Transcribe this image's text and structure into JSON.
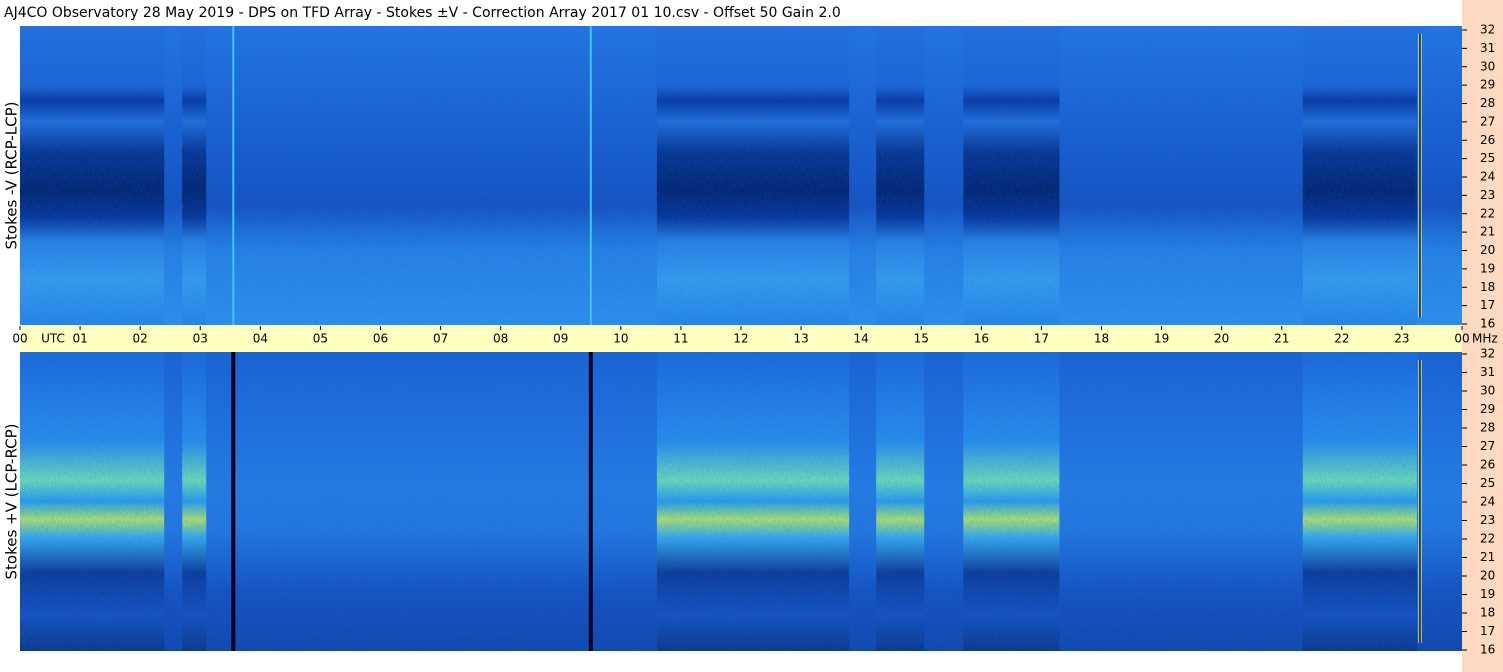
{
  "chart_data": [
    {
      "type": "spectrogram",
      "title": "AJ4CO Observatory  28 May 2019  -  DPS on TFD Array  -  Stokes ±V  -  Correction Array 2017 01 10.csv  -  Offset 50  Gain 2.0",
      "ylabel": "Stokes -V (RCP-LCP)",
      "ylim": [
        16,
        32
      ],
      "yticks": [
        16,
        17,
        18,
        19,
        20,
        21,
        22,
        23,
        24,
        25,
        26,
        27,
        28,
        29,
        30,
        31,
        32
      ],
      "xlim": [
        0,
        24
      ],
      "xticks": [
        {
          "value": 0,
          "label": "00"
        },
        {
          "value": 1,
          "label": "01"
        },
        {
          "value": 2,
          "label": "02"
        },
        {
          "value": 3,
          "label": "03"
        },
        {
          "value": 4,
          "label": "04"
        },
        {
          "value": 5,
          "label": "05"
        },
        {
          "value": 6,
          "label": "06"
        },
        {
          "value": 7,
          "label": "07"
        },
        {
          "value": 8,
          "label": "08"
        },
        {
          "value": 9,
          "label": "09"
        },
        {
          "value": 10,
          "label": "10"
        },
        {
          "value": 11,
          "label": "11"
        },
        {
          "value": 12,
          "label": "12"
        },
        {
          "value": 13,
          "label": "13"
        },
        {
          "value": 14,
          "label": "14"
        },
        {
          "value": 15,
          "label": "15"
        },
        {
          "value": 16,
          "label": "16"
        },
        {
          "value": 17,
          "label": "17"
        },
        {
          "value": 18,
          "label": "18"
        },
        {
          "value": 19,
          "label": "19"
        },
        {
          "value": 20,
          "label": "20"
        },
        {
          "value": 21,
          "label": "21"
        },
        {
          "value": 22,
          "label": "22"
        },
        {
          "value": 23,
          "label": "23"
        },
        {
          "value": 24,
          "label": "00"
        }
      ],
      "xlabel": "UTC",
      "yunit": "MHz"
    },
    {
      "type": "spectrogram",
      "ylabel": "Stokes +V (LCP-RCP)",
      "ylim": [
        16,
        32
      ],
      "yticks": [
        16,
        17,
        18,
        19,
        20,
        21,
        22,
        23,
        24,
        25,
        26,
        27,
        28,
        29,
        30,
        31,
        32
      ]
    }
  ]
}
